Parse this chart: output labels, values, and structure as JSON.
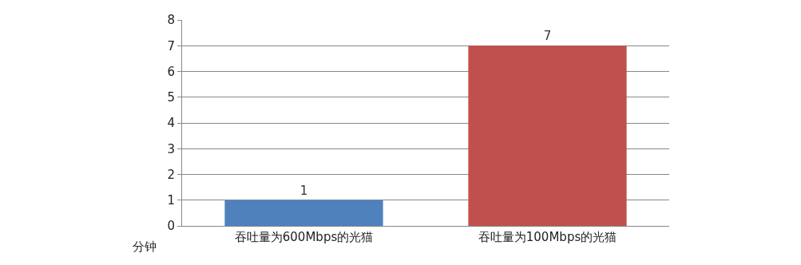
{
  "chart_data": {
    "type": "bar",
    "ylabel": "分钟",
    "categories": [
      "吞吐量为600Mbps的光猫",
      "吞吐量为100Mbps的光猫"
    ],
    "values": [
      1,
      7
    ],
    "colors": [
      "#4f81bd",
      "#c0504d"
    ],
    "ylim": [
      0,
      8
    ],
    "yticks": [
      0,
      1,
      2,
      3,
      4,
      5,
      6,
      7,
      8
    ],
    "grid": "y",
    "data_labels": true,
    "legend": false
  }
}
